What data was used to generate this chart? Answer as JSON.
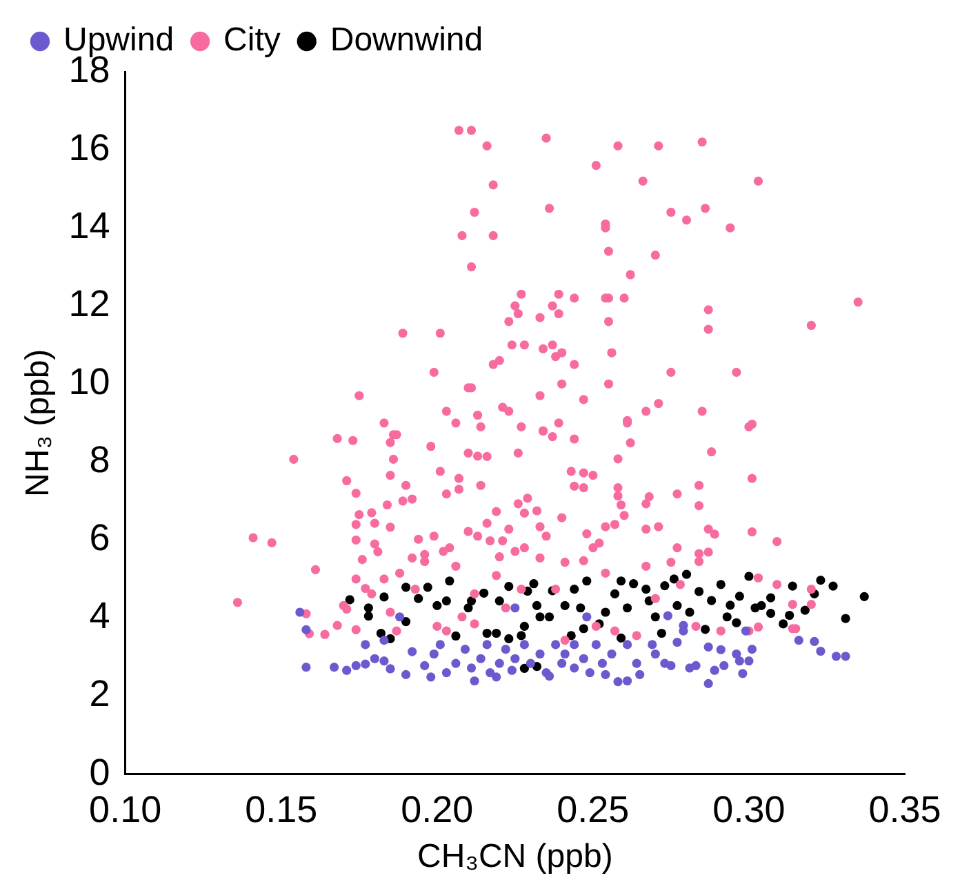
{
  "chart_data": {
    "type": "scatter",
    "xlabel": "CH₃CN (ppb)",
    "ylabel": "NH₃ (ppb)",
    "xlim": [
      0.1,
      0.35
    ],
    "xticks": [
      {
        "value": 0.1,
        "label": "0.10"
      },
      {
        "value": 0.15,
        "label": "0.15"
      },
      {
        "value": 0.2,
        "label": "0.20"
      },
      {
        "value": 0.25,
        "label": "0.25"
      },
      {
        "value": 0.3,
        "label": "0.30"
      },
      {
        "value": 0.35,
        "label": "0.35"
      }
    ],
    "ylim": [
      0,
      18
    ],
    "yticks": [
      0,
      2,
      4,
      6,
      8,
      10,
      12,
      14,
      16,
      18
    ],
    "grid": false,
    "legend": "top left",
    "marker": "circle",
    "series": [
      {
        "name": "Upwind",
        "color": "#6a5acd",
        "x": [
          0.156,
          0.158,
          0.158,
          0.167,
          0.171,
          0.174,
          0.177,
          0.18,
          0.183,
          0.185,
          0.177,
          0.183,
          0.188,
          0.19,
          0.192,
          0.196,
          0.198,
          0.199,
          0.201,
          0.203,
          0.206,
          0.209,
          0.211,
          0.212,
          0.214,
          0.216,
          0.217,
          0.219,
          0.22,
          0.222,
          0.224,
          0.225,
          0.228,
          0.23,
          0.233,
          0.235,
          0.236,
          0.238,
          0.24,
          0.241,
          0.244,
          0.244,
          0.247,
          0.249,
          0.251,
          0.253,
          0.254,
          0.256,
          0.258,
          0.261,
          0.261,
          0.264,
          0.265,
          0.269,
          0.27,
          0.273,
          0.275,
          0.277,
          0.279,
          0.281,
          0.283,
          0.287,
          0.287,
          0.289,
          0.291,
          0.292,
          0.296,
          0.297,
          0.298,
          0.299,
          0.3,
          0.301,
          0.316,
          0.321,
          0.323,
          0.328,
          0.331,
          0.274,
          0.279,
          0.248,
          0.225
        ],
        "values": [
          4.15,
          3.7,
          2.74,
          2.74,
          2.66,
          2.78,
          2.82,
          2.96,
          2.9,
          2.7,
          3.32,
          3.43,
          4.03,
          2.55,
          3.14,
          2.78,
          2.49,
          3.08,
          3.32,
          2.6,
          2.84,
          3.2,
          2.72,
          2.39,
          2.96,
          3.32,
          2.6,
          2.49,
          2.84,
          3.2,
          2.66,
          2.96,
          3.32,
          2.84,
          3.08,
          2.6,
          2.51,
          3.32,
          2.84,
          3.08,
          2.72,
          3.32,
          2.96,
          2.6,
          3.32,
          2.84,
          2.55,
          3.08,
          2.37,
          3.32,
          2.39,
          2.84,
          2.55,
          3.32,
          3.08,
          2.84,
          2.78,
          3.38,
          3.81,
          2.72,
          2.78,
          2.32,
          3.26,
          2.66,
          3.19,
          2.78,
          3.08,
          2.9,
          2.58,
          3.67,
          2.9,
          3.2,
          3.43,
          3.4,
          3.15,
          3.02,
          3.02,
          4.06,
          3.67,
          4.03,
          4.26
        ]
      },
      {
        "name": "City",
        "color": "#f76ba0",
        "x": [
          0.207,
          0.211,
          0.216,
          0.235,
          0.258,
          0.271,
          0.285,
          0.251,
          0.266,
          0.303,
          0.218,
          0.212,
          0.236,
          0.275,
          0.28,
          0.286,
          0.294,
          0.254,
          0.254,
          0.208,
          0.218,
          0.255,
          0.27,
          0.211,
          0.262,
          0.227,
          0.239,
          0.244,
          0.254,
          0.255,
          0.26,
          0.335,
          0.225,
          0.237,
          0.226,
          0.239,
          0.233,
          0.223,
          0.255,
          0.287,
          0.287,
          0.32,
          0.189,
          0.201,
          0.224,
          0.228,
          0.234,
          0.237,
          0.238,
          0.24,
          0.256,
          0.244,
          0.218,
          0.22,
          0.199,
          0.275,
          0.296,
          0.21,
          0.211,
          0.24,
          0.255,
          0.175,
          0.233,
          0.247,
          0.271,
          0.267,
          0.203,
          0.213,
          0.221,
          0.223,
          0.285,
          0.183,
          0.206,
          0.227,
          0.239,
          0.261,
          0.3,
          0.187,
          0.214,
          0.234,
          0.168,
          0.173,
          0.186,
          0.185,
          0.198,
          0.154,
          0.186,
          0.185,
          0.171,
          0.174,
          0.19,
          0.189,
          0.192,
          0.184,
          0.175,
          0.179,
          0.174,
          0.18,
          0.185,
          0.141,
          0.147,
          0.174,
          0.18,
          0.181,
          0.176,
          0.161,
          0.174,
          0.136,
          0.201,
          0.207,
          0.203,
          0.207,
          0.214,
          0.21,
          0.213,
          0.216,
          0.226,
          0.234,
          0.237,
          0.244,
          0.261,
          0.262,
          0.258,
          0.243,
          0.247,
          0.25,
          0.244,
          0.247,
          0.258,
          0.258,
          0.259,
          0.26,
          0.268,
          0.267,
          0.277,
          0.284,
          0.284,
          0.288,
          0.301,
          0.301,
          0.301,
          0.309,
          0.287,
          0.289,
          0.277,
          0.271,
          0.267,
          0.257,
          0.254,
          0.248,
          0.25,
          0.252,
          0.247,
          0.241,
          0.24,
          0.232,
          0.228,
          0.226,
          0.229,
          0.219,
          0.216,
          0.21,
          0.213,
          0.217,
          0.223,
          0.221,
          0.233,
          0.235,
          0.228,
          0.225,
          0.22,
          0.206,
          0.202,
          0.204,
          0.199,
          0.194,
          0.196,
          0.196,
          0.192,
          0.188,
          0.183,
          0.233,
          0.284,
          0.287,
          0.284,
          0.275,
          0.267,
          0.158,
          0.159,
          0.164,
          0.168,
          0.17,
          0.171,
          0.174,
          0.177,
          0.179,
          0.185,
          0.187,
          0.193,
          0.2,
          0.203,
          0.208,
          0.212,
          0.212,
          0.219,
          0.222,
          0.227,
          0.238,
          0.241,
          0.251,
          0.254,
          0.257,
          0.264,
          0.27,
          0.278,
          0.283,
          0.291,
          0.3,
          0.303,
          0.303,
          0.309,
          0.314,
          0.315,
          0.314,
          0.32,
          0.32
        ],
        "values": [
          16.5,
          16.5,
          16.1,
          16.3,
          16.1,
          16.1,
          16.2,
          15.6,
          15.2,
          15.2,
          15.1,
          14.4,
          14.5,
          14.4,
          14.2,
          14.5,
          14.0,
          14.1,
          14.0,
          13.8,
          13.8,
          13.4,
          13.3,
          13.0,
          12.8,
          12.3,
          12.3,
          12.2,
          12.2,
          12.2,
          12.2,
          12.1,
          12.0,
          12.0,
          11.8,
          11.8,
          11.7,
          11.6,
          11.6,
          11.9,
          11.4,
          11.5,
          11.3,
          11.3,
          11.0,
          11.0,
          10.9,
          11.0,
          10.7,
          10.8,
          10.8,
          10.5,
          10.5,
          10.6,
          10.3,
          10.3,
          10.3,
          9.9,
          9.9,
          10.0,
          10.0,
          9.7,
          9.7,
          9.6,
          9.5,
          9.3,
          9.3,
          9.2,
          9.4,
          9.3,
          9.3,
          9.0,
          9.0,
          8.9,
          9.0,
          9.0,
          8.9,
          8.7,
          8.9,
          8.8,
          8.6,
          8.55,
          8.7,
          8.5,
          8.4,
          8.07,
          8.07,
          7.66,
          7.52,
          7.2,
          7.4,
          7.0,
          7.05,
          6.9,
          6.65,
          6.7,
          6.4,
          6.43,
          6.33,
          6.06,
          5.93,
          6.0,
          5.9,
          5.7,
          5.5,
          5.24,
          5.0,
          4.4,
          7.76,
          7.58,
          7.18,
          7.3,
          7.4,
          8.23,
          8.15,
          8.14,
          8.23,
          8.79,
          8.65,
          8.59,
          9.06,
          8.49,
          8.08,
          7.76,
          7.72,
          7.66,
          7.38,
          7.34,
          7.34,
          7.13,
          6.9,
          6.63,
          7.11,
          6.93,
          7.18,
          7.4,
          6.88,
          8.26,
          8.97,
          7.58,
          6.21,
          5.96,
          6.28,
          6.15,
          5.8,
          6.34,
          6.28,
          6.4,
          6.34,
          6.16,
          5.8,
          5.92,
          5.47,
          5.43,
          6.57,
          6.75,
          6.69,
          6.93,
          7.07,
          6.73,
          6.43,
          6.22,
          6.1,
          5.98,
          6.28,
          5.98,
          6.34,
          6.1,
          5.8,
          5.71,
          5.57,
          5.33,
          5.71,
          5.8,
          6.1,
          6.02,
          5.63,
          5.45,
          5.54,
          5.15,
          5.0,
          5.54,
          5.65,
          5.69,
          5.45,
          5.43,
          5.33,
          4.11,
          3.6,
          3.58,
          3.81,
          4.32,
          4.23,
          3.7,
          4.76,
          4.62,
          4.15,
          3.67,
          4.74,
          3.79,
          3.67,
          4.03,
          3.85,
          4.62,
          5.09,
          4.26,
          4.74,
          4.74,
          3.43,
          3.79,
          5.15,
          3.67,
          3.55,
          4.5,
          4.86,
          3.79,
          3.67,
          3.67,
          5.03,
          3.77,
          4.86,
          3.73,
          3.73,
          4.35,
          4.74,
          4.35
        ]
      },
      {
        "name": "Downwind",
        "color": "#000000",
        "x": [
          0.172,
          0.178,
          0.178,
          0.183,
          0.182,
          0.185,
          0.19,
          0.19,
          0.194,
          0.197,
          0.2,
          0.203,
          0.204,
          0.206,
          0.21,
          0.211,
          0.215,
          0.216,
          0.219,
          0.22,
          0.223,
          0.223,
          0.227,
          0.228,
          0.229,
          0.231,
          0.232,
          0.233,
          0.236,
          0.237,
          0.241,
          0.243,
          0.244,
          0.246,
          0.247,
          0.248,
          0.252,
          0.254,
          0.257,
          0.259,
          0.259,
          0.261,
          0.263,
          0.267,
          0.268,
          0.27,
          0.272,
          0.273,
          0.276,
          0.277,
          0.28,
          0.281,
          0.284,
          0.286,
          0.288,
          0.291,
          0.293,
          0.294,
          0.296,
          0.297,
          0.3,
          0.302,
          0.304,
          0.307,
          0.307,
          0.311,
          0.313,
          0.314,
          0.318,
          0.321,
          0.323,
          0.327,
          0.331,
          0.337,
          0.228,
          0.232
        ],
        "values": [
          4.47,
          4.26,
          4.05,
          4.54,
          3.61,
          3.47,
          4.79,
          3.91,
          4.5,
          4.79,
          4.32,
          4.44,
          4.95,
          3.54,
          4.26,
          4.44,
          4.64,
          3.61,
          3.61,
          4.44,
          3.47,
          4.81,
          3.55,
          3.79,
          4.69,
          4.88,
          4.32,
          4.03,
          4.03,
          4.7,
          4.32,
          3.55,
          4.74,
          4.26,
          3.73,
          4.95,
          3.85,
          4.15,
          4.62,
          4.95,
          3.49,
          4.26,
          4.88,
          4.74,
          4.44,
          4.03,
          3.61,
          4.83,
          5.0,
          4.32,
          5.12,
          4.15,
          4.68,
          3.71,
          4.45,
          4.86,
          4.03,
          4.33,
          3.88,
          4.56,
          5.07,
          4.26,
          4.32,
          4.52,
          4.12,
          3.85,
          4.07,
          4.82,
          4.2,
          4.62,
          4.97,
          4.82,
          3.99,
          4.55,
          2.71,
          2.76
        ]
      }
    ]
  }
}
